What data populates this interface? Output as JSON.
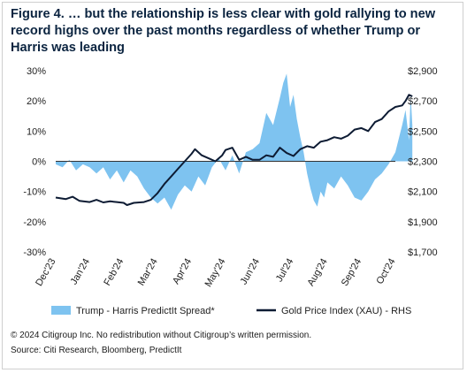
{
  "title": "Figure 4. … but the relationship is less clear with gold rallying to new record highs over the past months regardless of whether Trump or Harris was leading",
  "footer": {
    "copyright": "© 2024 Citigroup Inc. No redistribution without Citigroup’s written permission.",
    "source": "Source: Citi Research, Bloomberg, PredictIt"
  },
  "colors": {
    "spread": "#7ec3f0",
    "gold": "#0d1b33",
    "axis": "#333333"
  },
  "chart_data": {
    "type": "area",
    "x_ticks": [
      "Dec'23",
      "Jan'24",
      "Feb'24",
      "Mar'24",
      "Apr'24",
      "May'24",
      "Jun'24",
      "Jul'24",
      "Aug'24",
      "Sep'24",
      "Oct'24"
    ],
    "y_left": {
      "ticks": [
        "30%",
        "20%",
        "10%",
        "0%",
        "-10%",
        "-20%",
        "-30%"
      ],
      "range": [
        -30,
        30
      ]
    },
    "y_right": {
      "ticks": [
        "$2,900",
        "$2,700",
        "$2,500",
        "$2,300",
        "$2,100",
        "$1,900",
        "$1,700"
      ],
      "range": [
        1700,
        2900
      ]
    },
    "grid": false,
    "legend": {
      "position": "bottom"
    },
    "series": [
      {
        "name": "Trump - Harris PredictIt Spread*",
        "type": "area",
        "axis": "left",
        "points": [
          [
            0,
            -1
          ],
          [
            0.2,
            -2
          ],
          [
            0.4,
            0.5
          ],
          [
            0.6,
            -3
          ],
          [
            0.8,
            -1
          ],
          [
            1.0,
            -2
          ],
          [
            1.2,
            -4
          ],
          [
            1.4,
            -2
          ],
          [
            1.6,
            -6
          ],
          [
            1.8,
            -3
          ],
          [
            2.0,
            -7
          ],
          [
            2.2,
            -3
          ],
          [
            2.4,
            -5
          ],
          [
            2.6,
            -9
          ],
          [
            2.8,
            -12
          ],
          [
            3.0,
            -14
          ],
          [
            3.2,
            -12
          ],
          [
            3.4,
            -16
          ],
          [
            3.6,
            -11
          ],
          [
            3.8,
            -8
          ],
          [
            4.0,
            -10
          ],
          [
            4.2,
            -5
          ],
          [
            4.4,
            -8
          ],
          [
            4.6,
            -2
          ],
          [
            4.8,
            1
          ],
          [
            5.0,
            -3
          ],
          [
            5.2,
            2
          ],
          [
            5.4,
            -4
          ],
          [
            5.6,
            3
          ],
          [
            5.8,
            4
          ],
          [
            6.0,
            6
          ],
          [
            6.2,
            16
          ],
          [
            6.4,
            12
          ],
          [
            6.6,
            21
          ],
          [
            6.7,
            26
          ],
          [
            6.8,
            29
          ],
          [
            6.9,
            18
          ],
          [
            7.0,
            22
          ],
          [
            7.1,
            14
          ],
          [
            7.2,
            8
          ],
          [
            7.3,
            3
          ],
          [
            7.4,
            -4
          ],
          [
            7.5,
            -9
          ],
          [
            7.6,
            -13
          ],
          [
            7.7,
            -15
          ],
          [
            7.8,
            -10
          ],
          [
            7.9,
            -12
          ],
          [
            8.0,
            -7
          ],
          [
            8.2,
            -9
          ],
          [
            8.4,
            -5
          ],
          [
            8.6,
            -8
          ],
          [
            8.8,
            -12
          ],
          [
            9.0,
            -13
          ],
          [
            9.2,
            -10
          ],
          [
            9.4,
            -6
          ],
          [
            9.6,
            -4
          ],
          [
            9.8,
            -1
          ],
          [
            10.0,
            3
          ],
          [
            10.2,
            12
          ],
          [
            10.3,
            17
          ],
          [
            10.4,
            7
          ],
          [
            10.45,
            22
          ],
          [
            10.5,
            12
          ]
        ]
      },
      {
        "name": "Gold Price Index (XAU) - RHS",
        "type": "line",
        "axis": "right",
        "points": [
          [
            0,
            2060
          ],
          [
            0.3,
            2050
          ],
          [
            0.5,
            2065
          ],
          [
            0.7,
            2038
          ],
          [
            1.0,
            2030
          ],
          [
            1.2,
            2045
          ],
          [
            1.4,
            2028
          ],
          [
            1.6,
            2035
          ],
          [
            1.8,
            2030
          ],
          [
            2.0,
            2025
          ],
          [
            2.1,
            2010
          ],
          [
            2.3,
            2025
          ],
          [
            2.6,
            2030
          ],
          [
            2.8,
            2045
          ],
          [
            3.0,
            2090
          ],
          [
            3.2,
            2150
          ],
          [
            3.4,
            2200
          ],
          [
            3.6,
            2250
          ],
          [
            3.8,
            2300
          ],
          [
            4.0,
            2350
          ],
          [
            4.1,
            2380
          ],
          [
            4.3,
            2340
          ],
          [
            4.5,
            2320
          ],
          [
            4.7,
            2300
          ],
          [
            4.9,
            2340
          ],
          [
            5.0,
            2375
          ],
          [
            5.2,
            2390
          ],
          [
            5.4,
            2310
          ],
          [
            5.6,
            2330
          ],
          [
            5.8,
            2310
          ],
          [
            6.0,
            2310
          ],
          [
            6.2,
            2340
          ],
          [
            6.4,
            2330
          ],
          [
            6.6,
            2390
          ],
          [
            6.8,
            2355
          ],
          [
            7.0,
            2335
          ],
          [
            7.2,
            2380
          ],
          [
            7.4,
            2400
          ],
          [
            7.6,
            2390
          ],
          [
            7.8,
            2430
          ],
          [
            8.0,
            2440
          ],
          [
            8.2,
            2460
          ],
          [
            8.4,
            2450
          ],
          [
            8.6,
            2470
          ],
          [
            8.8,
            2510
          ],
          [
            9.0,
            2520
          ],
          [
            9.2,
            2500
          ],
          [
            9.4,
            2560
          ],
          [
            9.6,
            2580
          ],
          [
            9.8,
            2630
          ],
          [
            10.0,
            2660
          ],
          [
            10.2,
            2670
          ],
          [
            10.3,
            2700
          ],
          [
            10.4,
            2740
          ],
          [
            10.5,
            2730
          ]
        ]
      }
    ]
  }
}
